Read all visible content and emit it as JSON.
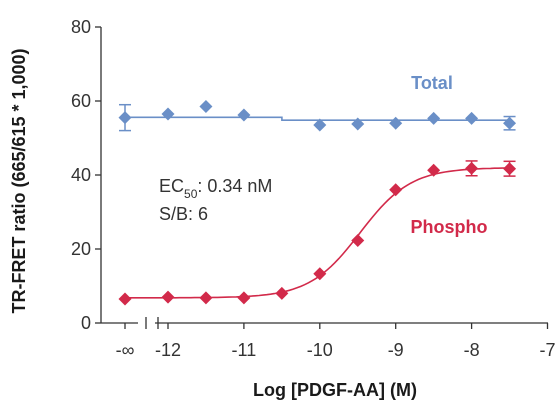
{
  "chart_data": {
    "type": "scatter",
    "xlabel": "Log [PDGF-AA] (M)",
    "ylabel": "TR-FRET ratio (665/615 * 1,000)",
    "ylim": [
      0,
      80
    ],
    "yticks": [
      0,
      20,
      40,
      60,
      80
    ],
    "xlim": [
      -12.6,
      -7
    ],
    "xticks": [
      {
        "value": -12.6,
        "label": "-∞"
      },
      {
        "value": -12,
        "label": "-12"
      },
      {
        "value": -11,
        "label": "-11"
      },
      {
        "value": -10,
        "label": "-10"
      },
      {
        "value": -9,
        "label": "-9"
      },
      {
        "value": -8,
        "label": "-8"
      },
      {
        "value": -7,
        "label": "-7"
      }
    ],
    "axis_break": true,
    "grid": false,
    "series": [
      {
        "name": "Total",
        "color": "#6a8fc7",
        "marker": "diamond",
        "x": [
          -12.6,
          -12,
          -11.5,
          -11,
          -10,
          -9.5,
          -9,
          -8.5,
          -8,
          -7.5
        ],
        "y": [
          55.5,
          56.5,
          58.5,
          56.2,
          53.5,
          53.8,
          54.0,
          55.3,
          55.3,
          54.0
        ],
        "error": [
          3.5,
          0,
          0,
          0,
          0,
          0,
          0,
          0,
          0,
          1.8
        ],
        "fit": {
          "type": "flat",
          "segments": [
            [
              -12.6,
              -10.5,
              55.6
            ],
            [
              -10.5,
              -7.5,
              54.8
            ]
          ]
        }
      },
      {
        "name": "Phospho",
        "color": "#d22a4a",
        "marker": "diamond",
        "x": [
          -12.6,
          -12,
          -11.5,
          -11,
          -10.5,
          -10,
          -9.5,
          -9,
          -8.5,
          -8,
          -7.5
        ],
        "y": [
          6.5,
          7.0,
          6.8,
          6.8,
          8.0,
          13.3,
          22.3,
          36.0,
          41.3,
          41.8,
          41.7
        ],
        "error": [
          0,
          0,
          0,
          0,
          0,
          0,
          0,
          0,
          0,
          2.0,
          2.0
        ],
        "fit": {
          "type": "4pl",
          "bottom": 6.8,
          "top": 42.0,
          "logEC50": -9.469,
          "hill": 1.3
        }
      }
    ],
    "annotations": {
      "ec50_prefix": "EC",
      "ec50_sub": "50",
      "ec50_value": ": 0.34 nM",
      "sb": "S/B: 6"
    }
  }
}
